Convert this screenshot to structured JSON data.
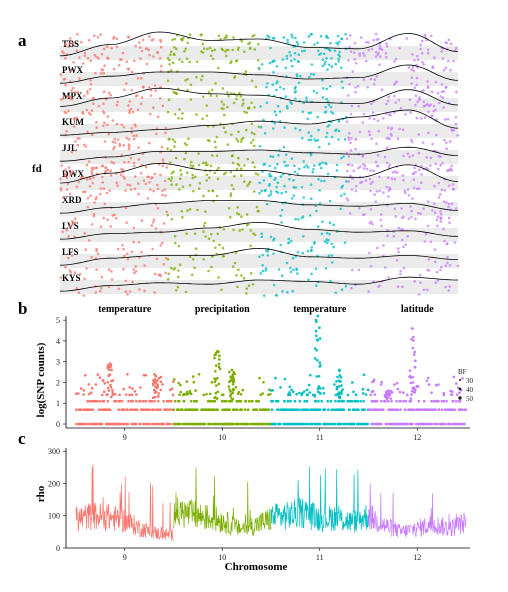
{
  "panel_labels": {
    "a": "a",
    "b": "b",
    "c": "c"
  },
  "colors": {
    "chr9": "#F8766D",
    "chr10": "#7CAE00",
    "chr11": "#00BFC4",
    "chr12": "#C77CFF",
    "track_bg": "#EBEBEB",
    "density_line": "#000000"
  },
  "chart_data": [
    {
      "panel": "a",
      "type": "scatter",
      "ylabel": "fd",
      "rows": [
        {
          "name": "TBS",
          "density": [
            0.15,
            0.55,
            1.0,
            0.7,
            0.75,
            0.45,
            0.4,
            0.95,
            0.3
          ],
          "points": 260
        },
        {
          "name": "PWX",
          "density": [
            0.1,
            0.35,
            0.5,
            0.5,
            0.4,
            0.25,
            0.3,
            0.75,
            0.2
          ],
          "points": 130
        },
        {
          "name": "MPX",
          "density": [
            0.2,
            0.5,
            0.85,
            0.65,
            0.6,
            0.35,
            0.3,
            0.8,
            0.25
          ],
          "points": 190
        },
        {
          "name": "KUM",
          "density": [
            0.1,
            0.2,
            0.3,
            0.45,
            0.6,
            0.5,
            0.75,
            1.0,
            0.35
          ],
          "points": 150
        },
        {
          "name": "JJL",
          "density": [
            0.1,
            0.25,
            0.45,
            0.45,
            0.5,
            0.4,
            0.35,
            0.6,
            0.3
          ],
          "points": 150
        },
        {
          "name": "DWX",
          "density": [
            0.25,
            0.6,
            0.95,
            0.7,
            0.7,
            0.5,
            0.45,
            0.9,
            0.3
          ],
          "points": 260
        },
        {
          "name": "XRD",
          "density": [
            0.1,
            0.3,
            0.45,
            0.55,
            0.55,
            0.4,
            0.35,
            0.45,
            0.2
          ],
          "points": 120
        },
        {
          "name": "LVS",
          "density": [
            0.1,
            0.3,
            0.35,
            0.5,
            0.7,
            0.45,
            0.35,
            0.4,
            0.2
          ],
          "points": 110
        },
        {
          "name": "LFS",
          "density": [
            0.1,
            0.35,
            0.45,
            0.45,
            0.7,
            0.4,
            0.35,
            0.45,
            0.3
          ],
          "points": 110
        },
        {
          "name": "KYS",
          "density": [
            0.1,
            0.3,
            0.4,
            0.35,
            0.5,
            0.45,
            0.35,
            0.6,
            0.5
          ],
          "points": 110
        }
      ]
    },
    {
      "panel": "b",
      "type": "scatter",
      "ylabel": "log(SNP counts)",
      "xlabel": "",
      "ylim": [
        0,
        5.2
      ],
      "yticks": [
        0,
        1,
        2,
        3,
        4,
        5
      ],
      "chromosomes": [
        "9",
        "10",
        "11",
        "12"
      ],
      "annotations": [
        {
          "text": "temperature",
          "chromosome": "9"
        },
        {
          "text": "precipitation",
          "chromosome": "10"
        },
        {
          "text": "temperature",
          "chromosome": "11"
        },
        {
          "text": "latitude",
          "chromosome": "12"
        }
      ],
      "peaks": [
        {
          "chromosome": "9",
          "pos": 0.35,
          "value": 2.9
        },
        {
          "chromosome": "9",
          "pos": 0.82,
          "value": 2.3
        },
        {
          "chromosome": "10",
          "pos": 0.45,
          "value": 3.5
        },
        {
          "chromosome": "10",
          "pos": 0.6,
          "value": 2.6
        },
        {
          "chromosome": "11",
          "pos": 0.48,
          "value": 5.2
        },
        {
          "chromosome": "11",
          "pos": 0.7,
          "value": 2.6
        },
        {
          "chromosome": "12",
          "pos": 0.45,
          "value": 4.6
        },
        {
          "chromosome": "12",
          "pos": 0.2,
          "value": 1.6
        }
      ],
      "legend": {
        "title": "BF",
        "entries": [
          "30",
          "40",
          "50"
        ]
      }
    },
    {
      "panel": "c",
      "type": "line",
      "ylabel": "rho",
      "xlabel": "Chromosome",
      "ylim": [
        0,
        310
      ],
      "yticks": [
        0,
        100,
        200,
        300
      ],
      "chromosomes": [
        "9",
        "10",
        "11",
        "12"
      ],
      "levels": [
        {
          "chromosome": "9",
          "profile": [
            90,
            100,
            95,
            85,
            60,
            45,
            40
          ]
        },
        {
          "chromosome": "10",
          "profile": [
            110,
            105,
            95,
            85,
            60,
            70,
            90
          ]
        },
        {
          "chromosome": "11",
          "profile": [
            95,
            100,
            110,
            90,
            95,
            80,
            100
          ]
        },
        {
          "chromosome": "12",
          "profile": [
            100,
            70,
            50,
            60,
            75,
            60,
            80
          ]
        }
      ]
    }
  ]
}
